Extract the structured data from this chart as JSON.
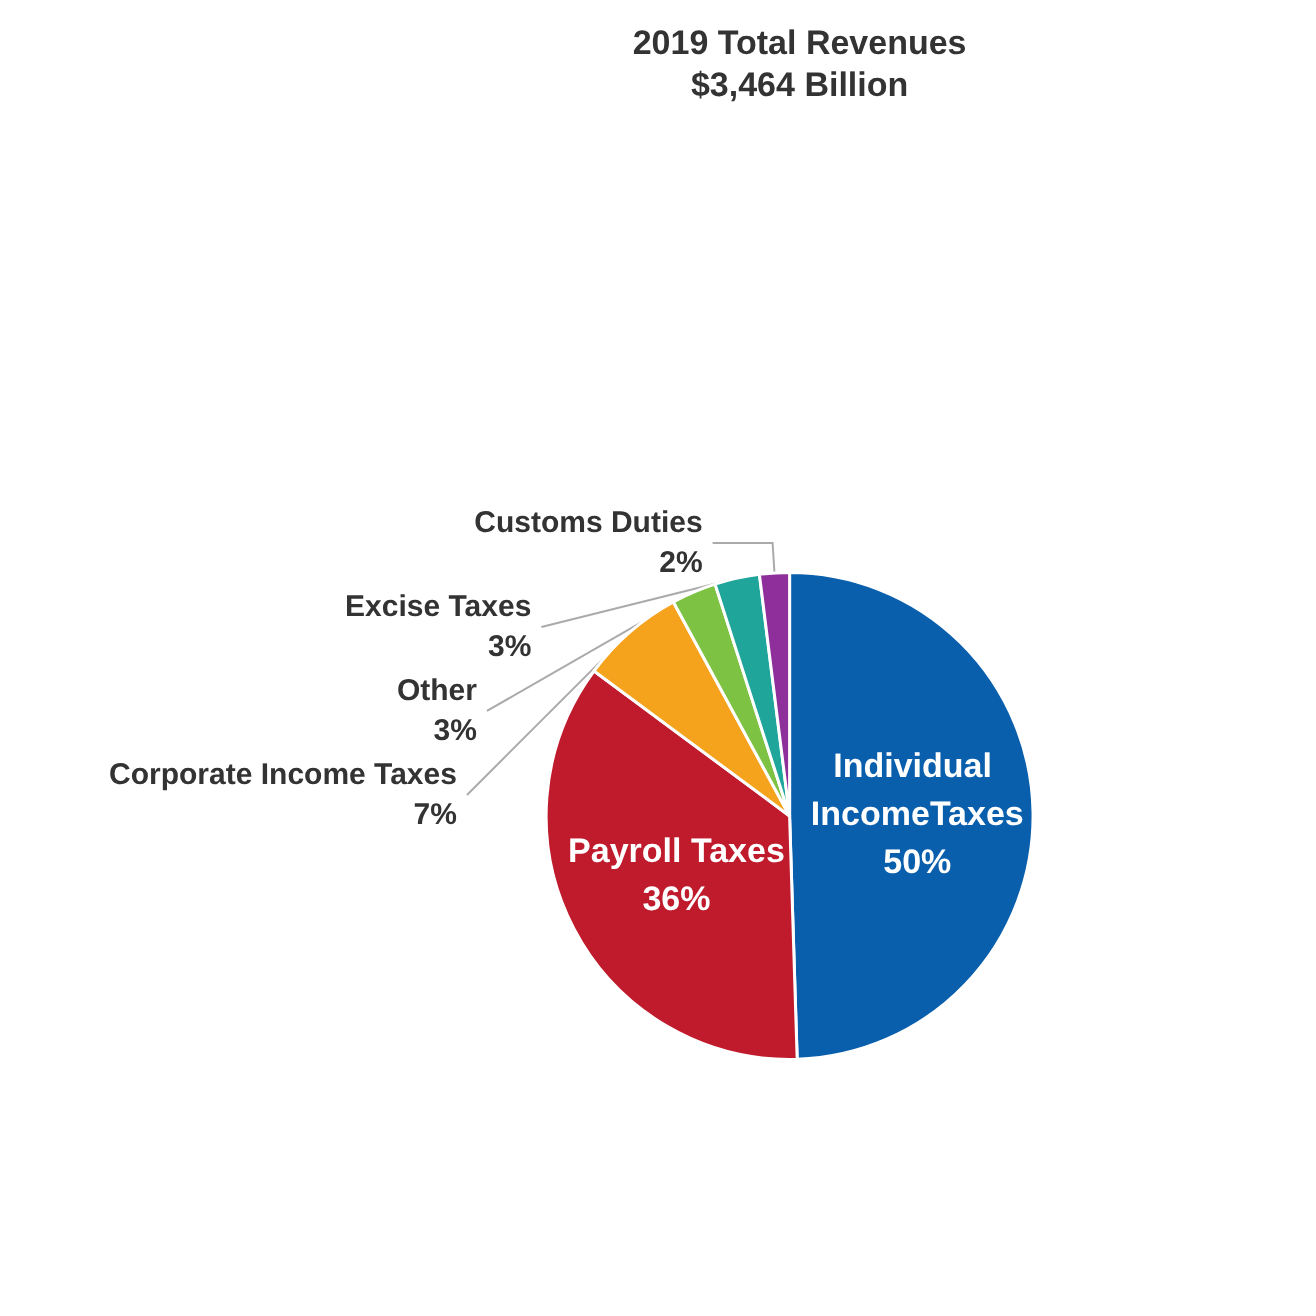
{
  "chart_data": {
    "type": "pie",
    "title": "2019 Total Revenues",
    "subtitle": "$3,464 Billion",
    "categories": [
      "Individual IncomeTaxes",
      "Payroll Taxes",
      "Corporate Income Taxes",
      "Other",
      "Excise Taxes",
      "Customs Duties"
    ],
    "values": [
      50,
      36,
      7,
      3,
      3,
      2
    ],
    "value_labels": [
      "50%",
      "36%",
      "7%",
      "3%",
      "3%",
      "2%"
    ],
    "colors": [
      "#0a5fad",
      "#c01b2c",
      "#f5a21c",
      "#7dc242",
      "#1fa59a",
      "#8e2f9c"
    ],
    "legend": false
  }
}
